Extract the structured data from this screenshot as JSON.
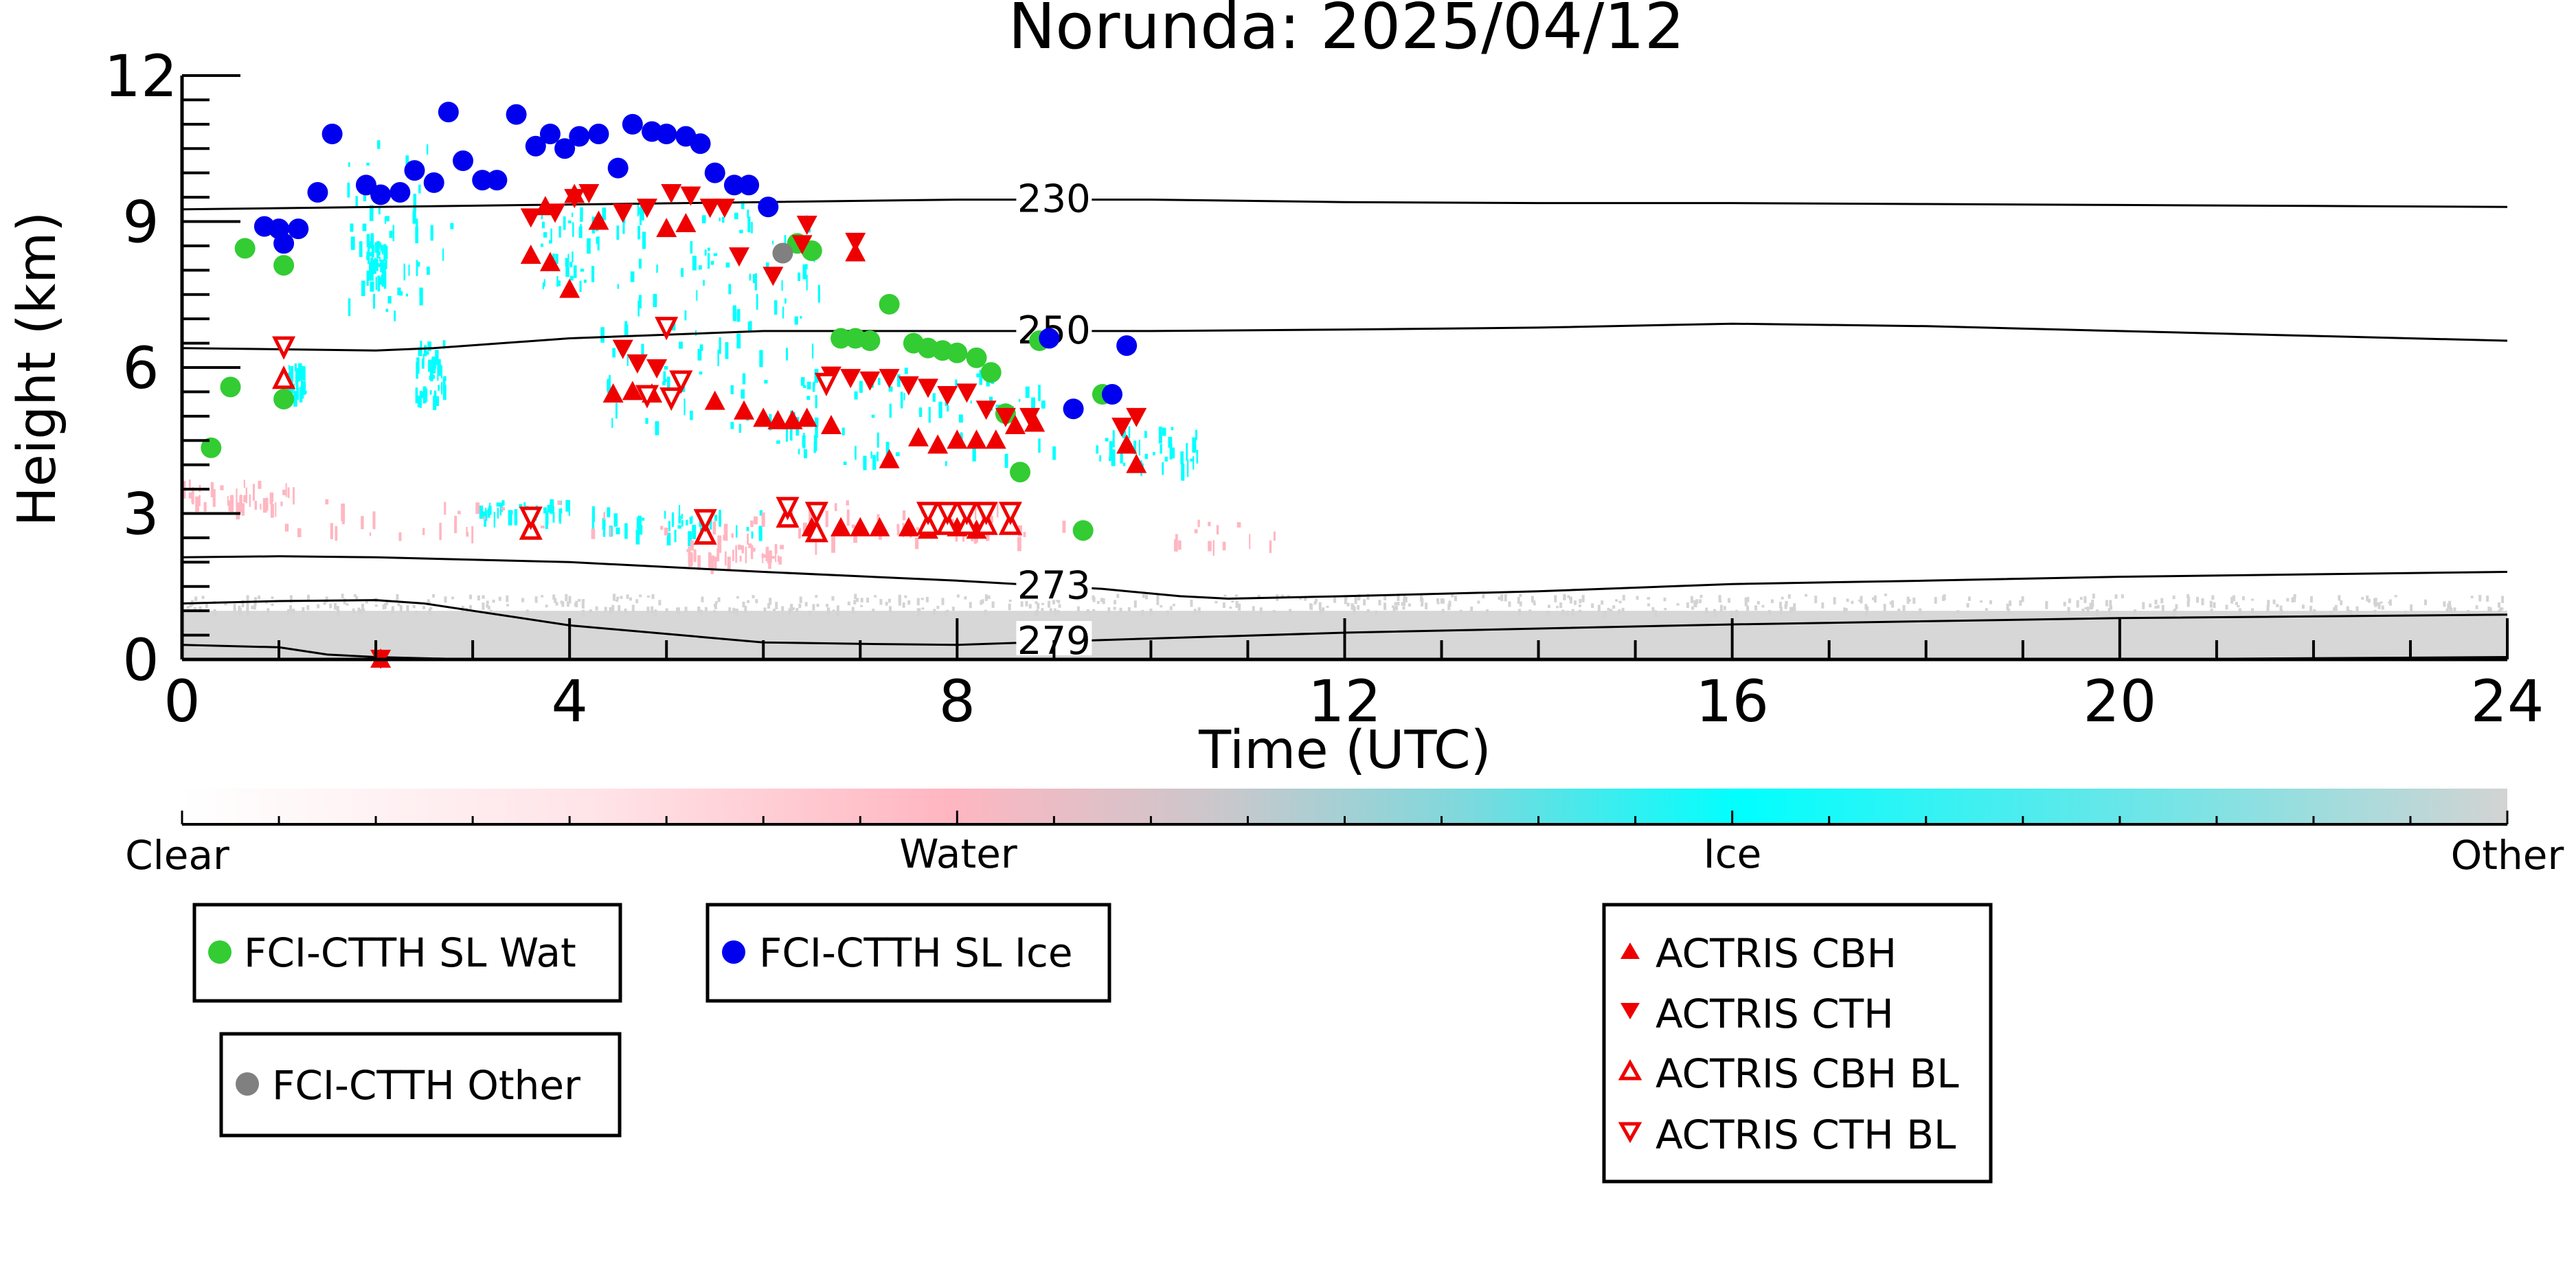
{
  "chart_data": {
    "type": "scatter",
    "title": "Norunda: 2025/04/12",
    "xlabel": "Time (UTC)",
    "ylabel": "Height (km)",
    "xlim": [
      0,
      24
    ],
    "ylim": [
      0,
      12
    ],
    "xticks": [
      0,
      4,
      8,
      12,
      16,
      20,
      24
    ],
    "yticks": [
      0,
      3,
      6,
      9,
      12
    ],
    "grid": false,
    "colorbar": {
      "categories": [
        "Clear",
        "Water",
        "Ice",
        "Other"
      ],
      "colors": [
        "#ffffff",
        "#ffb6c1",
        "#00ffff",
        "#d3d3d3"
      ]
    },
    "isotherms": [
      {
        "label": "230",
        "x": [
          0,
          2,
          4,
          6,
          8,
          10,
          12,
          14,
          16,
          18,
          20,
          22,
          24
        ],
        "y": [
          9.25,
          9.3,
          9.35,
          9.4,
          9.45,
          9.45,
          9.4,
          9.38,
          9.38,
          9.36,
          9.34,
          9.32,
          9.3
        ]
      },
      {
        "label": "250",
        "x": [
          0,
          2,
          2.6,
          4,
          6,
          8,
          10,
          12,
          14,
          16,
          18,
          20,
          22,
          24
        ],
        "y": [
          6.4,
          6.35,
          6.4,
          6.6,
          6.75,
          6.75,
          6.75,
          6.78,
          6.82,
          6.9,
          6.85,
          6.75,
          6.65,
          6.55
        ]
      },
      {
        "label": "273",
        "x": [
          0,
          1,
          2,
          4,
          6,
          8,
          9.5,
          10.3,
          10.8,
          12,
          14,
          16,
          18,
          20,
          22,
          24
        ],
        "y": [
          2.1,
          2.12,
          2.1,
          2.0,
          1.8,
          1.62,
          1.45,
          1.3,
          1.25,
          1.3,
          1.4,
          1.55,
          1.62,
          1.7,
          1.75,
          1.8
        ]
      },
      {
        "label": "279",
        "x": [
          0,
          1,
          2,
          2.5,
          4,
          6,
          7,
          8,
          9.5,
          12,
          16,
          20,
          24
        ],
        "y": [
          1.15,
          1.2,
          1.22,
          1.15,
          0.7,
          0.35,
          0.32,
          0.3,
          0.4,
          0.55,
          0.72,
          0.85,
          0.92
        ]
      },
      {
        "label": "",
        "x": [
          0,
          1,
          1.5,
          2,
          3,
          8,
          12,
          16,
          20,
          24
        ],
        "y": [
          0.3,
          0.25,
          0.1,
          0.05,
          0.0,
          0.0,
          0.0,
          0.0,
          0.0,
          0.05
        ]
      }
    ],
    "series": [
      {
        "name": "FCI-CTTH SL Wat",
        "color": "#33cc33",
        "marker": "circle",
        "points": [
          [
            0.3,
            4.35
          ],
          [
            0.5,
            5.6
          ],
          [
            0.65,
            8.45
          ],
          [
            1.05,
            8.1
          ],
          [
            1.05,
            5.35
          ],
          [
            6.35,
            8.55
          ],
          [
            6.5,
            8.4
          ],
          [
            6.8,
            6.6
          ],
          [
            6.95,
            6.6
          ],
          [
            7.1,
            6.55
          ],
          [
            7.3,
            7.3
          ],
          [
            7.55,
            6.5
          ],
          [
            7.7,
            6.4
          ],
          [
            7.85,
            6.35
          ],
          [
            8.0,
            6.3
          ],
          [
            8.2,
            6.2
          ],
          [
            8.35,
            5.9
          ],
          [
            8.5,
            5.05
          ],
          [
            8.65,
            3.85
          ],
          [
            8.85,
            6.55
          ],
          [
            9.3,
            2.65
          ],
          [
            9.5,
            5.45
          ]
        ]
      },
      {
        "name": "FCI-CTTH SL Ice",
        "color": "#0000ee",
        "marker": "circle",
        "points": [
          [
            0.85,
            8.9
          ],
          [
            1.0,
            8.85
          ],
          [
            1.05,
            8.55
          ],
          [
            1.2,
            8.85
          ],
          [
            1.4,
            9.6
          ],
          [
            1.55,
            10.8
          ],
          [
            1.9,
            9.75
          ],
          [
            2.05,
            9.55
          ],
          [
            2.25,
            9.6
          ],
          [
            2.4,
            10.05
          ],
          [
            2.6,
            9.8
          ],
          [
            2.75,
            11.25
          ],
          [
            2.9,
            10.25
          ],
          [
            3.1,
            9.85
          ],
          [
            3.25,
            9.85
          ],
          [
            3.45,
            11.2
          ],
          [
            3.65,
            10.55
          ],
          [
            3.8,
            10.8
          ],
          [
            3.95,
            10.5
          ],
          [
            4.1,
            10.75
          ],
          [
            4.3,
            10.8
          ],
          [
            4.5,
            10.1
          ],
          [
            4.65,
            11.0
          ],
          [
            4.85,
            10.85
          ],
          [
            5.0,
            10.8
          ],
          [
            5.2,
            10.75
          ],
          [
            5.35,
            10.6
          ],
          [
            5.5,
            10.0
          ],
          [
            5.7,
            9.75
          ],
          [
            5.85,
            9.75
          ],
          [
            6.05,
            9.3
          ],
          [
            8.95,
            6.6
          ],
          [
            9.2,
            5.15
          ],
          [
            9.6,
            5.45
          ],
          [
            9.75,
            6.45
          ]
        ]
      },
      {
        "name": "FCI-CTTH Other",
        "color": "#808080",
        "marker": "circle",
        "points": [
          [
            6.2,
            8.35
          ]
        ]
      },
      {
        "name": "ACTRIS CBH",
        "color": "#ee0000",
        "marker": "triangle-up",
        "points": [
          [
            3.6,
            8.3
          ],
          [
            3.8,
            8.15
          ],
          [
            4.0,
            7.6
          ],
          [
            3.75,
            9.3
          ],
          [
            4.05,
            9.55
          ],
          [
            4.3,
            9.0
          ],
          [
            4.45,
            5.45
          ],
          [
            4.65,
            5.5
          ],
          [
            4.85,
            5.45
          ],
          [
            5.0,
            8.85
          ],
          [
            5.2,
            8.95
          ],
          [
            5.5,
            5.3
          ],
          [
            5.8,
            5.1
          ],
          [
            6.0,
            4.95
          ],
          [
            6.15,
            4.9
          ],
          [
            6.3,
            4.9
          ],
          [
            6.45,
            4.95
          ],
          [
            6.7,
            4.8
          ],
          [
            6.95,
            8.35
          ],
          [
            7.3,
            4.1
          ],
          [
            7.6,
            4.55
          ],
          [
            7.8,
            4.4
          ],
          [
            8.0,
            4.5
          ],
          [
            8.2,
            4.5
          ],
          [
            8.4,
            4.5
          ],
          [
            8.6,
            4.8
          ],
          [
            8.8,
            4.85
          ],
          [
            9.75,
            4.4
          ],
          [
            9.85,
            4.0
          ],
          [
            6.5,
            2.7
          ],
          [
            6.8,
            2.7
          ],
          [
            7.0,
            2.7
          ],
          [
            7.2,
            2.7
          ],
          [
            7.5,
            2.7
          ],
          [
            7.7,
            2.65
          ],
          [
            8.0,
            2.7
          ],
          [
            8.2,
            2.65
          ],
          [
            2.05,
            0.0
          ]
        ]
      },
      {
        "name": "ACTRIS CTH",
        "color": "#ee0000",
        "marker": "triangle-down",
        "points": [
          [
            3.6,
            9.1
          ],
          [
            3.85,
            9.2
          ],
          [
            4.05,
            9.5
          ],
          [
            4.2,
            9.6
          ],
          [
            4.55,
            9.2
          ],
          [
            4.8,
            9.3
          ],
          [
            5.05,
            9.6
          ],
          [
            5.25,
            9.55
          ],
          [
            5.45,
            9.3
          ],
          [
            5.6,
            9.3
          ],
          [
            5.75,
            8.3
          ],
          [
            6.1,
            7.9
          ],
          [
            6.4,
            8.55
          ],
          [
            6.45,
            8.95
          ],
          [
            6.95,
            8.6
          ],
          [
            4.55,
            6.4
          ],
          [
            4.7,
            6.1
          ],
          [
            4.9,
            6.0
          ],
          [
            6.7,
            5.85
          ],
          [
            6.9,
            5.8
          ],
          [
            7.1,
            5.75
          ],
          [
            7.3,
            5.8
          ],
          [
            7.5,
            5.65
          ],
          [
            7.7,
            5.6
          ],
          [
            7.9,
            5.45
          ],
          [
            8.1,
            5.5
          ],
          [
            8.3,
            5.15
          ],
          [
            8.5,
            5.0
          ],
          [
            8.75,
            5.0
          ],
          [
            9.7,
            4.8
          ],
          [
            9.85,
            5.0
          ],
          [
            2.05,
            0.03
          ]
        ]
      },
      {
        "name": "ACTRIS CBH BL",
        "color": "#ee0000",
        "marker": "triangle-up-open",
        "points": [
          [
            1.05,
            5.75
          ],
          [
            3.6,
            2.65
          ],
          [
            5.4,
            2.55
          ],
          [
            6.25,
            2.9
          ],
          [
            6.55,
            2.6
          ],
          [
            7.7,
            2.75
          ],
          [
            7.9,
            2.75
          ],
          [
            8.1,
            2.75
          ],
          [
            8.3,
            2.75
          ],
          [
            8.55,
            2.75
          ]
        ]
      },
      {
        "name": "ACTRIS CTH BL",
        "color": "#ee0000",
        "marker": "triangle-down-open",
        "points": [
          [
            1.05,
            6.45
          ],
          [
            3.6,
            2.95
          ],
          [
            4.8,
            5.45
          ],
          [
            5.0,
            6.85
          ],
          [
            5.15,
            5.75
          ],
          [
            5.4,
            2.9
          ],
          [
            6.25,
            3.15
          ],
          [
            6.55,
            3.05
          ],
          [
            7.7,
            3.05
          ],
          [
            7.9,
            3.05
          ],
          [
            8.1,
            3.05
          ],
          [
            8.3,
            3.05
          ],
          [
            8.55,
            3.05
          ],
          [
            6.65,
            5.7
          ],
          [
            5.05,
            5.4
          ]
        ]
      }
    ],
    "cloud_fields": [
      {
        "phase": "Ice",
        "color": "#00ffff",
        "regions": [
          {
            "x": [
              1.6,
              2.8
            ],
            "y": [
              7.0,
              10.7
            ]
          },
          {
            "x": [
              2.4,
              2.7
            ],
            "y": [
              5.4,
              6.6
            ]
          },
          {
            "x": [
              1.9,
              2.1
            ],
            "y": [
              7.8,
              8.6
            ]
          },
          {
            "x": [
              1.05,
              1.25
            ],
            "y": [
              5.5,
              6.1
            ]
          },
          {
            "x": [
              3.7,
              4.3
            ],
            "y": [
              7.6,
              9.4
            ]
          },
          {
            "x": [
              4.3,
              6.6
            ],
            "y": [
              4.7,
              9.5
            ]
          },
          {
            "x": [
              6.0,
              9.0
            ],
            "y": [
              4.0,
              6.0
            ]
          },
          {
            "x": [
              9.4,
              10.5
            ],
            "y": [
              4.0,
              4.8
            ]
          },
          {
            "x": [
              4.2,
              6.0
            ],
            "y": [
              2.6,
              3.2
            ]
          },
          {
            "x": [
              3.0,
              4.0
            ],
            "y": [
              3.0,
              3.3
            ]
          }
        ]
      },
      {
        "phase": "Water",
        "color": "#ffb6c1",
        "regions": [
          {
            "x": [
              0.0,
              1.2
            ],
            "y": [
              3.2,
              3.7
            ]
          },
          {
            "x": [
              1.0,
              8.5
            ],
            "y": [
              2.6,
              3.3
            ]
          },
          {
            "x": [
              5.0,
              11.5
            ],
            "y": [
              2.4,
              2.9
            ]
          },
          {
            "x": [
              5.2,
              6.2
            ],
            "y": [
              2.1,
              2.4
            ]
          }
        ]
      },
      {
        "phase": "Other",
        "color": "#d3d3d3",
        "regions": [
          {
            "x": [
              0.0,
              24.0
            ],
            "y": [
              0.0,
              1.0
            ]
          }
        ]
      }
    ]
  }
}
